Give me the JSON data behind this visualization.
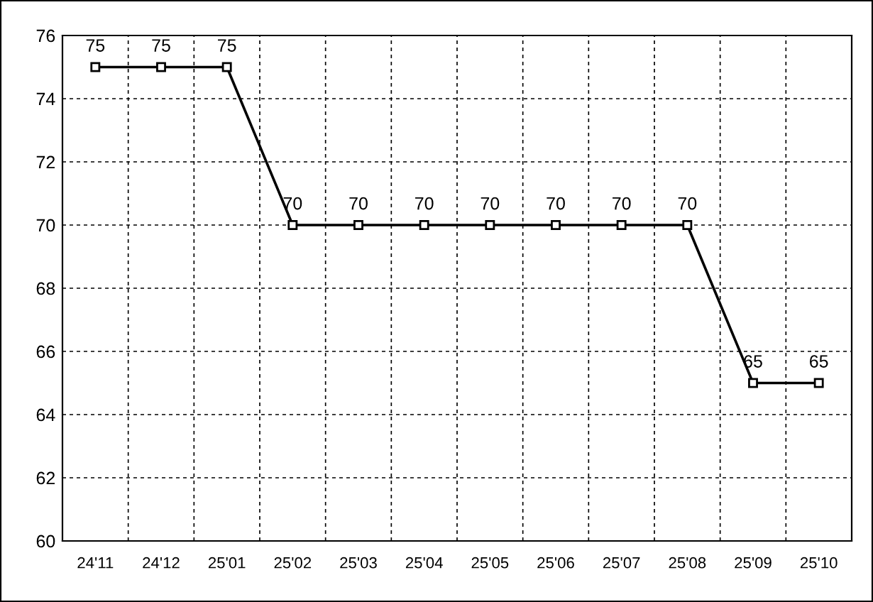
{
  "chart_data": {
    "type": "line",
    "categories": [
      "24'11",
      "24'12",
      "25'01",
      "25'02",
      "25'03",
      "25'04",
      "25'05",
      "25'06",
      "25'07",
      "25'08",
      "25'09",
      "25'10"
    ],
    "series": [
      {
        "color": "#000000",
        "values": [
          75,
          75,
          75,
          70,
          70,
          70,
          70,
          70,
          70,
          70,
          65,
          65
        ]
      }
    ],
    "ylim": [
      60,
      76
    ],
    "yticks": [
      60,
      62,
      64,
      66,
      68,
      70,
      72,
      74,
      76
    ],
    "grid": true,
    "marker": "square",
    "line_style": "solid",
    "data_labels": true
  }
}
